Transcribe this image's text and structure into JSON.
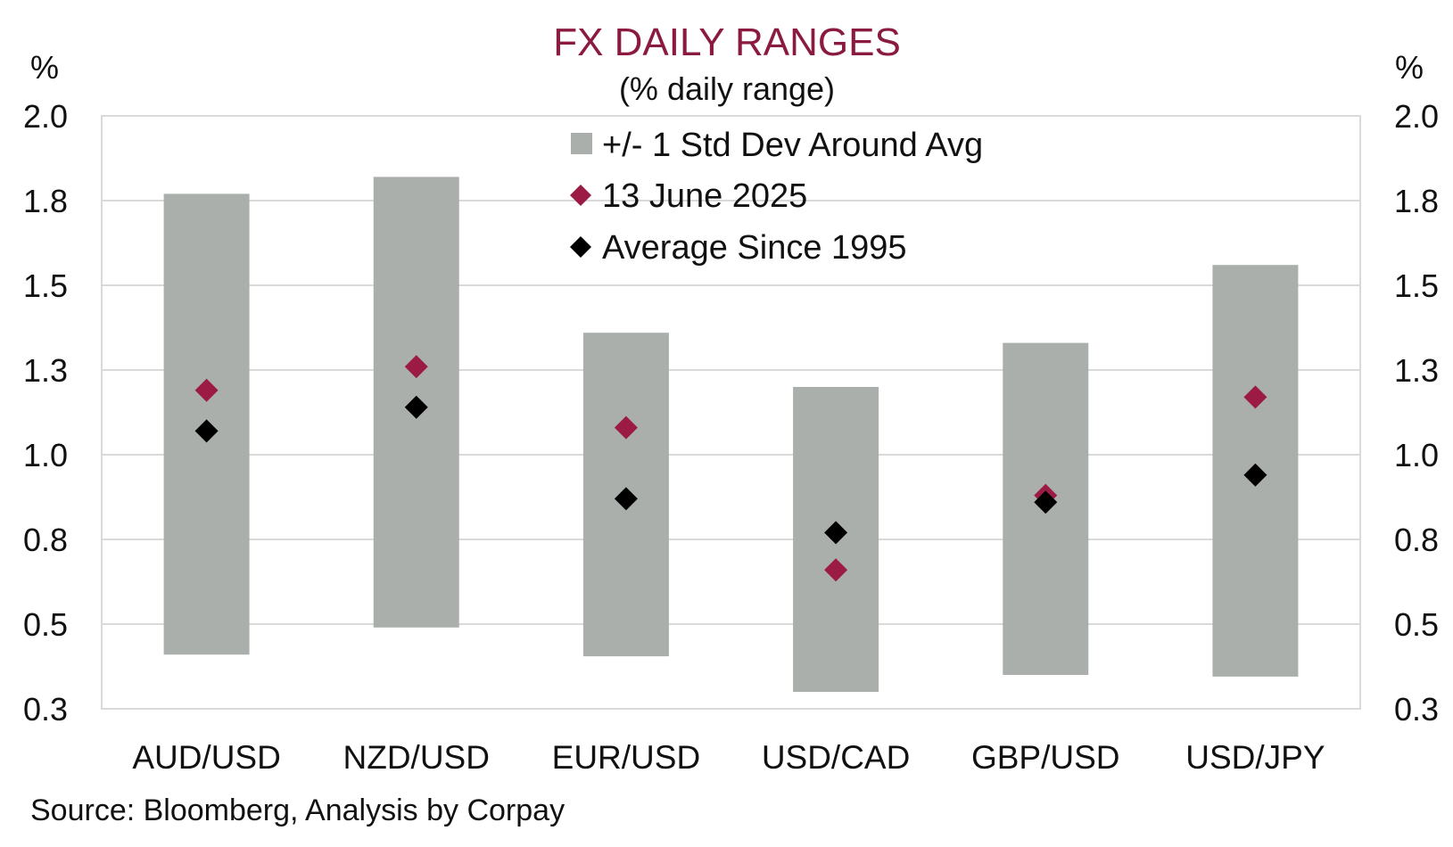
{
  "chart_data": {
    "type": "range-dot",
    "title": "FX DAILY RANGES",
    "subtitle": "(% daily range)",
    "y_unit_left": "%",
    "y_unit_right": "%",
    "ylim": [
      0.25,
      2.0
    ],
    "y_ticks": [
      0.25,
      0.5,
      0.75,
      1.0,
      1.25,
      1.5,
      1.75,
      2.0
    ],
    "y_tick_labels": [
      "0.3",
      "0.5",
      "0.8",
      "1.0",
      "1.3",
      "1.5",
      "1.8",
      "2.0"
    ],
    "categories": [
      "AUD/USD",
      "NZD/USD",
      "EUR/USD",
      "USD/CAD",
      "GBP/USD",
      "USD/JPY"
    ],
    "series": [
      {
        "name": "+/- 1 Std Dev Around Avg",
        "kind": "range",
        "low": [
          0.41,
          0.49,
          0.405,
          0.3,
          0.35,
          0.345
        ],
        "high": [
          1.77,
          1.82,
          1.36,
          1.2,
          1.33,
          1.56
        ]
      },
      {
        "name": "13 June 2025",
        "kind": "marker",
        "values": [
          1.19,
          1.26,
          1.08,
          0.66,
          0.88,
          1.17
        ]
      },
      {
        "name": "Average Since 1995",
        "kind": "marker",
        "values": [
          1.07,
          1.14,
          0.87,
          0.77,
          0.86,
          0.94
        ]
      }
    ],
    "colors": {
      "range": "#abafab",
      "marker_june": "#9b1b45",
      "marker_avg": "#000000",
      "title": "#8b1a3f",
      "grid": "#d9d9d9"
    },
    "legend_placement": "top-center",
    "grid": true,
    "source": "Source: Bloomberg, Analysis by Corpay"
  }
}
